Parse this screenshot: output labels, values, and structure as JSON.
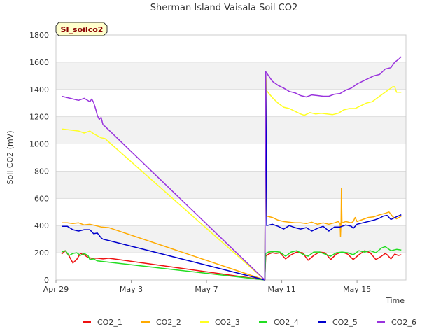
{
  "chart_data": {
    "type": "line",
    "title": "Sherman Island Vaisala Soil CO2",
    "xlabel": "Time",
    "ylabel": "Soil CO2 (mV)",
    "badge": "SI_soilco2",
    "ylim": [
      0,
      1800
    ],
    "yticks": [
      0,
      200,
      400,
      600,
      800,
      1000,
      1200,
      1400,
      1600,
      1800
    ],
    "xlim": [
      0,
      18.6
    ],
    "xticks": [
      {
        "x": 0,
        "label": "Apr 29"
      },
      {
        "x": 4,
        "label": "May 3"
      },
      {
        "x": 8,
        "label": "May 7"
      },
      {
        "x": 12,
        "label": "May 11"
      },
      {
        "x": 16,
        "label": "May 15"
      }
    ],
    "grid": true,
    "legend_position": "bottom",
    "series": [
      {
        "name": "CO2_1",
        "color": "#ee1111",
        "gap_x": 11.1,
        "segments": [
          [
            [
              0.3,
              190
            ],
            [
              0.5,
              215
            ],
            [
              0.7,
              175
            ],
            [
              0.9,
              125
            ],
            [
              1.1,
              150
            ],
            [
              1.3,
              195
            ],
            [
              1.5,
              185
            ],
            [
              1.7,
              165
            ],
            [
              1.9,
              160
            ],
            [
              2.2,
              160
            ],
            [
              2.5,
              155
            ],
            [
              2.8,
              160
            ]
          ],
          [
            [
              11.15,
              175
            ],
            [
              11.3,
              190
            ],
            [
              11.5,
              200
            ],
            [
              11.7,
              195
            ],
            [
              11.9,
              200
            ],
            [
              12.2,
              155
            ],
            [
              12.5,
              185
            ],
            [
              12.8,
              205
            ],
            [
              13.1,
              200
            ],
            [
              13.4,
              145
            ],
            [
              13.7,
              180
            ],
            [
              14.0,
              205
            ],
            [
              14.3,
              200
            ],
            [
              14.6,
              150
            ],
            [
              14.9,
              190
            ],
            [
              15.2,
              205
            ],
            [
              15.5,
              190
            ],
            [
              15.8,
              150
            ],
            [
              16.1,
              185
            ],
            [
              16.4,
              215
            ],
            [
              16.7,
              200
            ],
            [
              17.0,
              150
            ],
            [
              17.3,
              175
            ],
            [
              17.5,
              195
            ],
            [
              17.6,
              185
            ],
            [
              17.8,
              155
            ],
            [
              18.0,
              190
            ],
            [
              18.2,
              180
            ],
            [
              18.35,
              185
            ]
          ]
        ]
      },
      {
        "name": "CO2_2",
        "color": "#ffaa00",
        "gap_x": 11.1,
        "segments": [
          [
            [
              0.3,
              420
            ],
            [
              0.6,
              420
            ],
            [
              0.9,
              415
            ],
            [
              1.2,
              420
            ],
            [
              1.5,
              405
            ],
            [
              1.8,
              410
            ],
            [
              2.1,
              400
            ],
            [
              2.4,
              390
            ],
            [
              2.8,
              385
            ]
          ],
          [
            [
              11.15,
              1530
            ],
            [
              11.2,
              470
            ],
            [
              11.5,
              460
            ],
            [
              11.8,
              440
            ],
            [
              12.1,
              430
            ],
            [
              12.4,
              425
            ],
            [
              12.7,
              420
            ],
            [
              13.0,
              420
            ],
            [
              13.3,
              415
            ],
            [
              13.6,
              425
            ],
            [
              13.9,
              410
            ],
            [
              14.2,
              420
            ],
            [
              14.5,
              410
            ],
            [
              14.8,
              420
            ],
            [
              15.0,
              430
            ],
            [
              15.1,
              415
            ],
            [
              15.12,
              320
            ],
            [
              15.15,
              430
            ],
            [
              15.17,
              675
            ],
            [
              15.2,
              420
            ],
            [
              15.4,
              430
            ],
            [
              15.7,
              420
            ],
            [
              15.8,
              430
            ],
            [
              15.9,
              460
            ],
            [
              16.0,
              430
            ],
            [
              16.3,
              445
            ],
            [
              16.6,
              460
            ],
            [
              16.9,
              465
            ],
            [
              17.2,
              480
            ],
            [
              17.5,
              490
            ],
            [
              17.7,
              500
            ],
            [
              17.9,
              465
            ],
            [
              18.1,
              450
            ],
            [
              18.35,
              470
            ]
          ]
        ]
      },
      {
        "name": "CO2_3",
        "color": "#ffff22",
        "gap_x": 11.1,
        "segments": [
          [
            [
              0.3,
              1110
            ],
            [
              0.6,
              1105
            ],
            [
              0.9,
              1100
            ],
            [
              1.2,
              1095
            ],
            [
              1.5,
              1080
            ],
            [
              1.8,
              1095
            ],
            [
              2.0,
              1075
            ],
            [
              2.2,
              1060
            ],
            [
              2.4,
              1045
            ],
            [
              2.6,
              1040
            ]
          ],
          [
            [
              11.15,
              1510
            ],
            [
              11.2,
              1390
            ],
            [
              11.5,
              1340
            ],
            [
              11.8,
              1300
            ],
            [
              12.1,
              1270
            ],
            [
              12.4,
              1260
            ],
            [
              12.7,
              1240
            ],
            [
              13.0,
              1220
            ],
            [
              13.2,
              1210
            ],
            [
              13.5,
              1230
            ],
            [
              13.8,
              1220
            ],
            [
              14.1,
              1225
            ],
            [
              14.4,
              1220
            ],
            [
              14.7,
              1215
            ],
            [
              15.0,
              1225
            ],
            [
              15.3,
              1250
            ],
            [
              15.6,
              1260
            ],
            [
              15.9,
              1260
            ],
            [
              16.2,
              1280
            ],
            [
              16.5,
              1300
            ],
            [
              16.8,
              1310
            ],
            [
              17.1,
              1340
            ],
            [
              17.4,
              1370
            ],
            [
              17.7,
              1400
            ],
            [
              17.9,
              1420
            ],
            [
              18.0,
              1420
            ],
            [
              18.1,
              1380
            ],
            [
              18.35,
              1380
            ]
          ]
        ]
      },
      {
        "name": "CO2_4",
        "color": "#22dd22",
        "gap_x": 11.1,
        "segments": [
          [
            [
              0.3,
              205
            ],
            [
              0.5,
              215
            ],
            [
              0.7,
              180
            ],
            [
              0.9,
              195
            ],
            [
              1.1,
              200
            ],
            [
              1.3,
              180
            ],
            [
              1.5,
              195
            ],
            [
              1.7,
              180
            ],
            [
              1.8,
              150
            ],
            [
              2.0,
              155
            ],
            [
              2.2,
              140
            ]
          ],
          [
            [
              11.15,
              195
            ],
            [
              11.3,
              205
            ],
            [
              11.6,
              210
            ],
            [
              11.9,
              205
            ],
            [
              12.2,
              175
            ],
            [
              12.5,
              205
            ],
            [
              12.8,
              215
            ],
            [
              13.1,
              190
            ],
            [
              13.4,
              175
            ],
            [
              13.7,
              205
            ],
            [
              14.0,
              205
            ],
            [
              14.3,
              190
            ],
            [
              14.6,
              175
            ],
            [
              14.9,
              200
            ],
            [
              15.2,
              205
            ],
            [
              15.5,
              200
            ],
            [
              15.8,
              185
            ],
            [
              16.1,
              215
            ],
            [
              16.4,
              205
            ],
            [
              16.7,
              215
            ],
            [
              17.0,
              200
            ],
            [
              17.3,
              235
            ],
            [
              17.5,
              245
            ],
            [
              17.8,
              215
            ],
            [
              18.1,
              225
            ],
            [
              18.35,
              220
            ]
          ]
        ]
      },
      {
        "name": "CO2_5",
        "color": "#0000cc",
        "gap_x": 11.1,
        "segments": [
          [
            [
              0.3,
              395
            ],
            [
              0.6,
              395
            ],
            [
              0.9,
              370
            ],
            [
              1.2,
              360
            ],
            [
              1.5,
              370
            ],
            [
              1.8,
              370
            ],
            [
              2.0,
              340
            ],
            [
              2.2,
              345
            ],
            [
              2.4,
              310
            ],
            [
              2.5,
              300
            ],
            [
              2.8,
              290
            ]
          ],
          [
            [
              11.15,
              1530
            ],
            [
              11.2,
              400
            ],
            [
              11.5,
              410
            ],
            [
              11.8,
              395
            ],
            [
              12.1,
              375
            ],
            [
              12.4,
              400
            ],
            [
              12.7,
              385
            ],
            [
              13.0,
              375
            ],
            [
              13.3,
              385
            ],
            [
              13.6,
              360
            ],
            [
              13.9,
              380
            ],
            [
              14.2,
              395
            ],
            [
              14.5,
              360
            ],
            [
              14.8,
              390
            ],
            [
              15.1,
              390
            ],
            [
              15.4,
              405
            ],
            [
              15.7,
              395
            ],
            [
              15.8,
              380
            ],
            [
              16.0,
              410
            ],
            [
              16.3,
              420
            ],
            [
              16.6,
              430
            ],
            [
              16.9,
              440
            ],
            [
              17.2,
              455
            ],
            [
              17.4,
              470
            ],
            [
              17.6,
              475
            ],
            [
              17.8,
              445
            ],
            [
              18.1,
              465
            ],
            [
              18.35,
              480
            ]
          ]
        ]
      },
      {
        "name": "CO2_6",
        "color": "#9933dd",
        "gap_x": 11.1,
        "segments": [
          [
            [
              0.3,
              1350
            ],
            [
              0.6,
              1340
            ],
            [
              0.9,
              1330
            ],
            [
              1.2,
              1320
            ],
            [
              1.5,
              1335
            ],
            [
              1.8,
              1310
            ],
            [
              1.9,
              1330
            ],
            [
              2.0,
              1305
            ],
            [
              2.1,
              1260
            ],
            [
              2.2,
              1210
            ],
            [
              2.3,
              1180
            ],
            [
              2.4,
              1195
            ],
            [
              2.5,
              1140
            ],
            [
              2.6,
              1130
            ]
          ],
          [
            [
              11.15,
              1530
            ],
            [
              11.2,
              1520
            ],
            [
              11.5,
              1460
            ],
            [
              11.8,
              1430
            ],
            [
              12.1,
              1410
            ],
            [
              12.4,
              1385
            ],
            [
              12.7,
              1375
            ],
            [
              13.0,
              1355
            ],
            [
              13.3,
              1345
            ],
            [
              13.6,
              1360
            ],
            [
              13.9,
              1355
            ],
            [
              14.2,
              1350
            ],
            [
              14.5,
              1350
            ],
            [
              14.8,
              1365
            ],
            [
              15.1,
              1370
            ],
            [
              15.4,
              1395
            ],
            [
              15.7,
              1410
            ],
            [
              16.0,
              1440
            ],
            [
              16.3,
              1460
            ],
            [
              16.6,
              1480
            ],
            [
              16.9,
              1500
            ],
            [
              17.2,
              1510
            ],
            [
              17.5,
              1550
            ],
            [
              17.8,
              1560
            ],
            [
              18.0,
              1600
            ],
            [
              18.2,
              1620
            ],
            [
              18.35,
              1640
            ]
          ]
        ]
      }
    ]
  }
}
